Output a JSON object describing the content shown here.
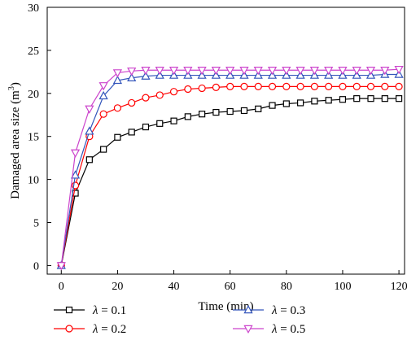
{
  "chart_data": {
    "type": "line",
    "title": "",
    "xlabel": "Time (min)",
    "ylabel": "Damaged area size",
    "ylabel_unit": "(m",
    "ylabel_unit_sup": "3",
    "ylabel_unit_close": ")",
    "xlim": [
      -5,
      122
    ],
    "ylim": [
      -1,
      30
    ],
    "xticks": [
      0,
      20,
      40,
      60,
      80,
      100,
      120
    ],
    "yticks": [
      0,
      5,
      10,
      15,
      20,
      25,
      30
    ],
    "grid": false,
    "legend_position": "bottom",
    "x": [
      0,
      5,
      10,
      15,
      20,
      25,
      30,
      35,
      40,
      45,
      50,
      55,
      60,
      65,
      70,
      75,
      80,
      85,
      90,
      95,
      100,
      105,
      110,
      115,
      120
    ],
    "series": [
      {
        "name": "λ = 0.1",
        "symbol": "λ",
        "value_text": " = 0.1",
        "color": "#000000",
        "marker": "square",
        "values": [
          0,
          8.4,
          12.3,
          13.5,
          14.9,
          15.5,
          16.1,
          16.5,
          16.8,
          17.3,
          17.6,
          17.8,
          17.9,
          18.0,
          18.2,
          18.6,
          18.8,
          18.9,
          19.1,
          19.2,
          19.3,
          19.4,
          19.4,
          19.4,
          19.4
        ]
      },
      {
        "name": "λ = 0.2",
        "symbol": "λ",
        "value_text": " = 0.2",
        "color": "#ff0000",
        "marker": "circle",
        "values": [
          0,
          9.3,
          15.0,
          17.6,
          18.3,
          18.9,
          19.5,
          19.8,
          20.2,
          20.5,
          20.6,
          20.7,
          20.8,
          20.8,
          20.8,
          20.8,
          20.8,
          20.8,
          20.8,
          20.8,
          20.8,
          20.8,
          20.8,
          20.8,
          20.8
        ]
      },
      {
        "name": "λ = 0.3",
        "symbol": "λ",
        "value_text": " = 0.3",
        "color": "#3355bb",
        "marker": "triangle-up",
        "values": [
          0,
          10.5,
          15.6,
          19.7,
          21.5,
          21.8,
          22.0,
          22.1,
          22.1,
          22.1,
          22.1,
          22.1,
          22.1,
          22.1,
          22.1,
          22.1,
          22.1,
          22.1,
          22.1,
          22.1,
          22.1,
          22.1,
          22.1,
          22.2,
          22.2
        ]
      },
      {
        "name": "λ = 0.5",
        "symbol": "λ",
        "value_text": " = 0.5",
        "color": "#cc44cc",
        "marker": "triangle-down",
        "values": [
          0,
          13.1,
          18.2,
          20.9,
          22.4,
          22.6,
          22.7,
          22.7,
          22.7,
          22.7,
          22.7,
          22.7,
          22.7,
          22.7,
          22.7,
          22.7,
          22.7,
          22.7,
          22.7,
          22.7,
          22.7,
          22.7,
          22.7,
          22.7,
          22.8
        ]
      }
    ]
  }
}
